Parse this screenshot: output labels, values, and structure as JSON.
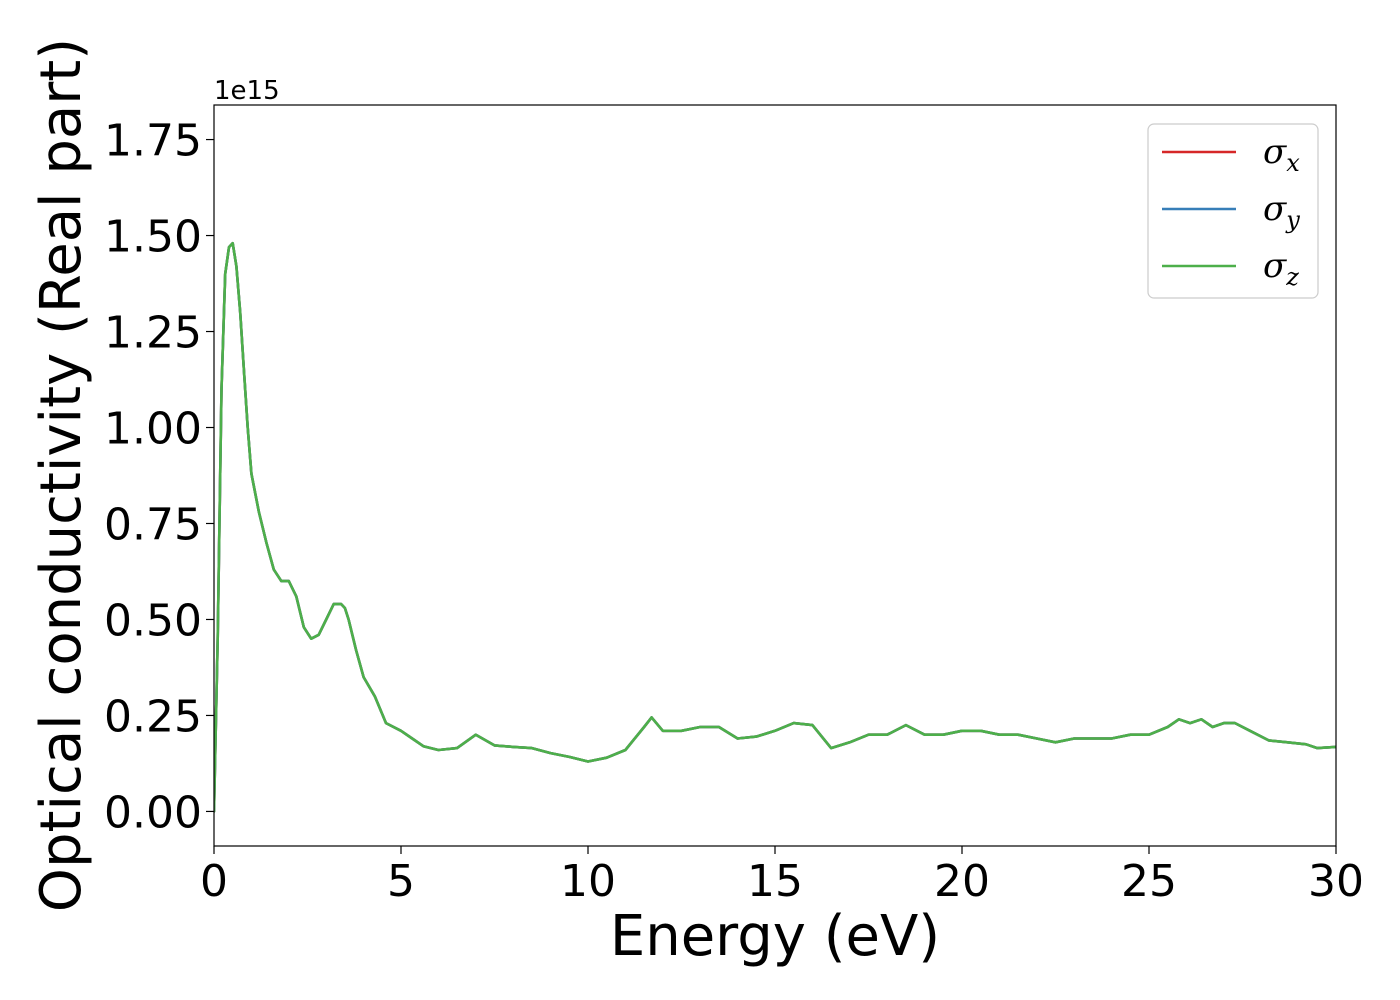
{
  "chart_data": {
    "type": "line",
    "title": "",
    "xlabel": "Energy (eV)",
    "ylabel": "Optical conductivity (Real part)",
    "y_offset_label": "1e15",
    "y_multiplier": 1000000000000000.0,
    "xlim": [
      0,
      30
    ],
    "ylim": [
      -0.09,
      1.84
    ],
    "x_ticks": [
      0,
      5,
      10,
      15,
      20,
      25,
      30
    ],
    "x_tick_labels": [
      "0",
      "5",
      "10",
      "15",
      "20",
      "25",
      "30"
    ],
    "y_ticks": [
      0.0,
      0.25,
      0.5,
      0.75,
      1.0,
      1.25,
      1.5,
      1.75
    ],
    "y_tick_labels": [
      "0.00",
      "0.25",
      "0.50",
      "0.75",
      "1.00",
      "1.25",
      "1.50",
      "1.75"
    ],
    "grid": false,
    "legend_position": "top-right",
    "x": [
      0,
      0.1,
      0.2,
      0.3,
      0.4,
      0.5,
      0.6,
      0.7,
      0.8,
      0.9,
      1.0,
      1.2,
      1.4,
      1.6,
      1.8,
      2.0,
      2.2,
      2.4,
      2.6,
      2.8,
      3.0,
      3.2,
      3.4,
      3.5,
      3.6,
      3.8,
      4.0,
      4.3,
      4.6,
      5.0,
      5.3,
      5.6,
      6.0,
      6.5,
      7.0,
      7.5,
      8.0,
      8.5,
      9.0,
      9.5,
      10.0,
      10.5,
      11.0,
      11.5,
      11.7,
      12.0,
      12.5,
      13.0,
      13.5,
      14.0,
      14.5,
      15.0,
      15.5,
      16.0,
      16.5,
      17.0,
      17.5,
      18.0,
      18.5,
      19.0,
      19.5,
      20.0,
      20.5,
      21.0,
      21.5,
      22.0,
      22.5,
      23.0,
      23.5,
      24.0,
      24.5,
      25.0,
      25.5,
      25.8,
      26.1,
      26.4,
      26.7,
      27.0,
      27.3,
      27.7,
      28.2,
      28.7,
      29.2,
      29.5,
      30.0
    ],
    "series": [
      {
        "name": "σx",
        "symbol": "σ",
        "subscript": "x",
        "color": "#d62728",
        "values": [
          0.0,
          0.45,
          1.1,
          1.4,
          1.47,
          1.48,
          1.42,
          1.3,
          1.15,
          1.0,
          0.88,
          0.78,
          0.7,
          0.63,
          0.6,
          0.6,
          0.56,
          0.48,
          0.45,
          0.46,
          0.5,
          0.54,
          0.54,
          0.53,
          0.5,
          0.42,
          0.35,
          0.3,
          0.23,
          0.21,
          0.19,
          0.17,
          0.16,
          0.165,
          0.2,
          0.172,
          0.168,
          0.165,
          0.152,
          0.142,
          0.13,
          0.14,
          0.16,
          0.22,
          0.245,
          0.21,
          0.21,
          0.22,
          0.22,
          0.19,
          0.195,
          0.21,
          0.23,
          0.225,
          0.165,
          0.18,
          0.2,
          0.2,
          0.225,
          0.2,
          0.2,
          0.21,
          0.21,
          0.2,
          0.2,
          0.19,
          0.18,
          0.19,
          0.19,
          0.19,
          0.2,
          0.2,
          0.22,
          0.24,
          0.23,
          0.24,
          0.22,
          0.23,
          0.23,
          0.21,
          0.185,
          0.18,
          0.175,
          0.165,
          0.168
        ]
      },
      {
        "name": "σy",
        "symbol": "σ",
        "subscript": "y",
        "color": "#377eb8",
        "values": [
          0.0,
          0.45,
          1.1,
          1.4,
          1.47,
          1.48,
          1.42,
          1.3,
          1.15,
          1.0,
          0.88,
          0.78,
          0.7,
          0.63,
          0.6,
          0.6,
          0.56,
          0.48,
          0.45,
          0.46,
          0.5,
          0.54,
          0.54,
          0.53,
          0.5,
          0.42,
          0.35,
          0.3,
          0.23,
          0.21,
          0.19,
          0.17,
          0.16,
          0.165,
          0.2,
          0.172,
          0.168,
          0.165,
          0.152,
          0.142,
          0.13,
          0.14,
          0.16,
          0.22,
          0.245,
          0.21,
          0.21,
          0.22,
          0.22,
          0.19,
          0.195,
          0.21,
          0.23,
          0.225,
          0.165,
          0.18,
          0.2,
          0.2,
          0.225,
          0.2,
          0.2,
          0.21,
          0.21,
          0.2,
          0.2,
          0.19,
          0.18,
          0.19,
          0.19,
          0.19,
          0.2,
          0.2,
          0.22,
          0.24,
          0.23,
          0.24,
          0.22,
          0.23,
          0.23,
          0.21,
          0.185,
          0.18,
          0.175,
          0.165,
          0.168
        ]
      },
      {
        "name": "σz",
        "symbol": "σ",
        "subscript": "z",
        "color": "#4daf4a",
        "values": [
          0.0,
          0.45,
          1.1,
          1.4,
          1.47,
          1.48,
          1.42,
          1.3,
          1.15,
          1.0,
          0.88,
          0.78,
          0.7,
          0.63,
          0.6,
          0.6,
          0.56,
          0.48,
          0.45,
          0.46,
          0.5,
          0.54,
          0.54,
          0.53,
          0.5,
          0.42,
          0.35,
          0.3,
          0.23,
          0.21,
          0.19,
          0.17,
          0.16,
          0.165,
          0.2,
          0.172,
          0.168,
          0.165,
          0.152,
          0.142,
          0.13,
          0.14,
          0.16,
          0.22,
          0.245,
          0.21,
          0.21,
          0.22,
          0.22,
          0.19,
          0.195,
          0.21,
          0.23,
          0.225,
          0.165,
          0.18,
          0.2,
          0.2,
          0.225,
          0.2,
          0.2,
          0.21,
          0.21,
          0.2,
          0.2,
          0.19,
          0.18,
          0.19,
          0.19,
          0.19,
          0.2,
          0.2,
          0.22,
          0.24,
          0.23,
          0.24,
          0.22,
          0.23,
          0.23,
          0.21,
          0.185,
          0.18,
          0.175,
          0.165,
          0.168
        ]
      }
    ]
  }
}
